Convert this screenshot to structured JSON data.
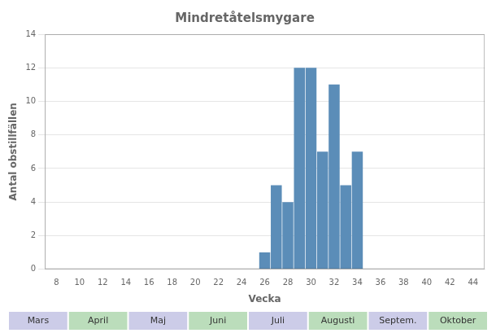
{
  "chart_data": {
    "type": "bar",
    "title": "Mindretåtelsmygare",
    "xlabel": "Vecka",
    "ylabel": "Antal obstillfällen",
    "x": [
      26,
      27,
      28,
      29,
      30,
      31,
      32,
      33,
      34
    ],
    "values": [
      1,
      5,
      4,
      12,
      12,
      7,
      11,
      5,
      7
    ],
    "color": "#5b8db8",
    "xlim": [
      7,
      45
    ],
    "xticks": [
      8,
      10,
      12,
      14,
      16,
      18,
      20,
      22,
      24,
      26,
      28,
      30,
      32,
      34,
      36,
      38,
      40,
      42,
      44
    ],
    "ylim": [
      0,
      14
    ],
    "yticks": [
      0,
      2,
      4,
      6,
      8,
      10,
      12,
      14
    ],
    "grid": "y",
    "annotations": [
      {
        "text": "Mars",
        "color": "#cccce8"
      },
      {
        "text": "April",
        "color": "#bbddbb"
      },
      {
        "text": "Maj",
        "color": "#cccce8"
      },
      {
        "text": "Juni",
        "color": "#bbddbb"
      },
      {
        "text": "Juli",
        "color": "#cccce8"
      },
      {
        "text": "Augusti",
        "color": "#bbddbb"
      },
      {
        "text": "Septem.",
        "color": "#cccce8"
      },
      {
        "text": "Oktober",
        "color": "#bbddbb"
      }
    ]
  }
}
